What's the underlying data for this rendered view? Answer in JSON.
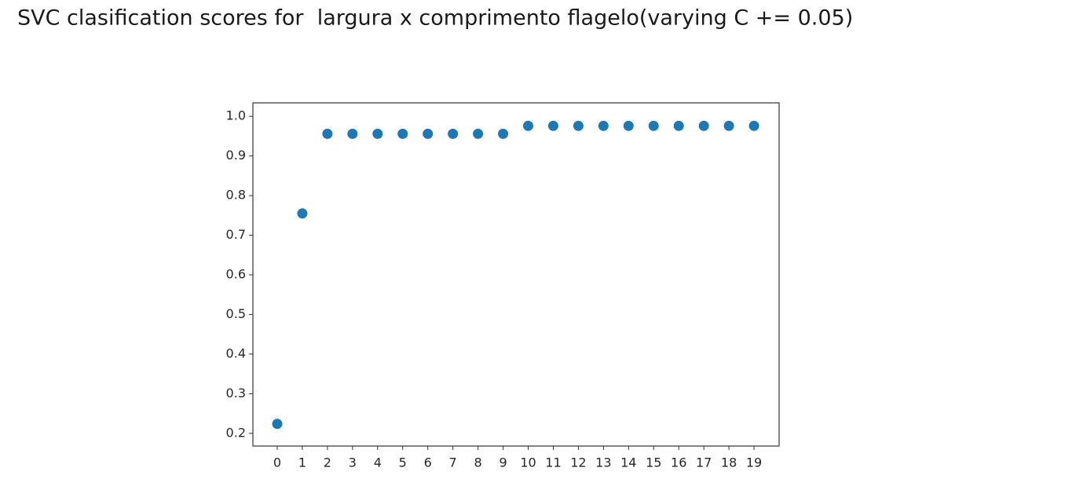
{
  "chart_data": {
    "type": "scatter",
    "title": "SVC clasification scores for  largura x comprimento flagelo(varying C += 0.05)",
    "x": [
      0,
      1,
      2,
      3,
      4,
      5,
      6,
      7,
      8,
      9,
      10,
      11,
      12,
      13,
      14,
      15,
      16,
      17,
      18,
      19
    ],
    "values": [
      0.224,
      0.755,
      0.956,
      0.956,
      0.956,
      0.956,
      0.956,
      0.956,
      0.956,
      0.956,
      0.976,
      0.976,
      0.976,
      0.976,
      0.976,
      0.976,
      0.976,
      0.976,
      0.976,
      0.976
    ],
    "color": "#1f77b4",
    "xlim": [
      -0.97,
      20.0
    ],
    "xticks": [
      0,
      1,
      2,
      3,
      4,
      5,
      6,
      7,
      8,
      9,
      10,
      11,
      12,
      13,
      14,
      15,
      16,
      17,
      18,
      19
    ],
    "ylim": [
      0.168,
      1.034
    ],
    "yticks": [
      {
        "value": 0.2,
        "label": "0.2"
      },
      {
        "value": 0.3,
        "label": "0.3"
      },
      {
        "value": 0.4,
        "label": "0.4"
      },
      {
        "value": 0.5,
        "label": "0.5"
      },
      {
        "value": 0.6,
        "label": "0.6"
      },
      {
        "value": 0.7,
        "label": "0.7"
      },
      {
        "value": 0.8,
        "label": "0.8"
      },
      {
        "value": 0.9,
        "label": "0.9"
      },
      {
        "value": 1.0,
        "label": "1.0"
      }
    ],
    "grid": false
  }
}
